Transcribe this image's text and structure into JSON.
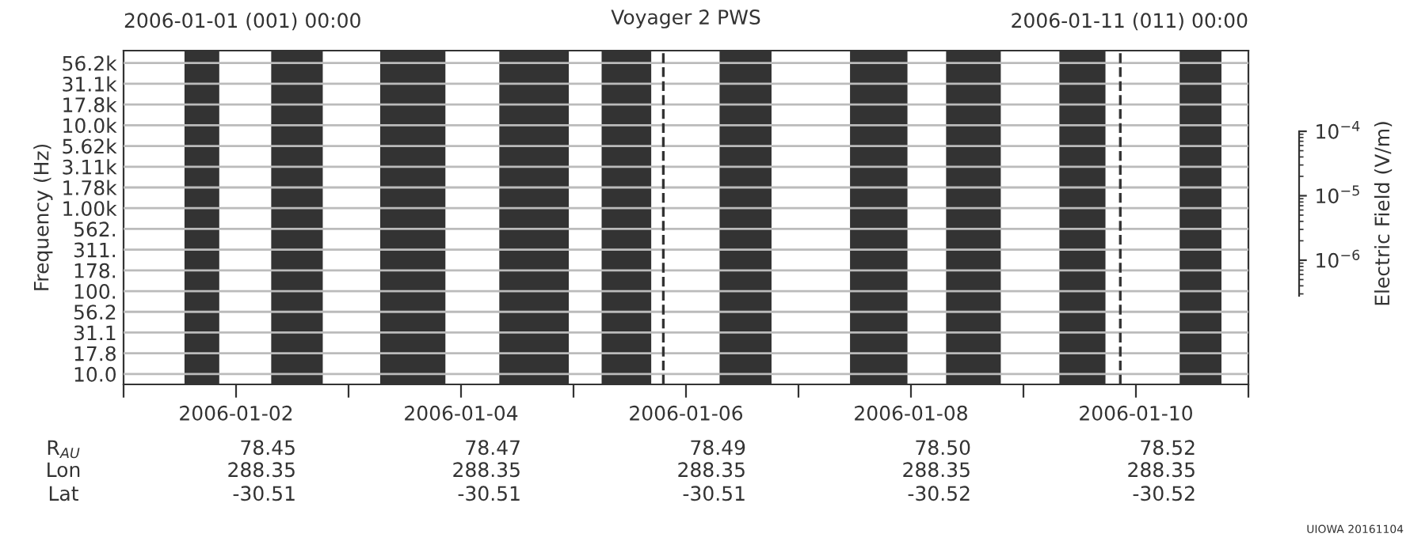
{
  "chart_data": {
    "type": "bar",
    "orientation": "horizontal",
    "title": "Voyager 2 PWS",
    "ylabel": "Frequency (Hz)",
    "y2label": "Electric Field (V/m)",
    "categories": [
      "56.2k",
      "31.1k",
      "17.8k",
      "10.0k",
      "5.62k",
      "3.11k",
      "1.78k",
      "1.00k",
      "562.",
      "311.",
      "178.",
      "100.",
      "56.2",
      "31.1",
      "17.8",
      "10.0"
    ],
    "bands": [
      {
        "axis": "x",
        "from": "2006-01-01T13:00",
        "to": "2006-01-01T20:25",
        "color": "#333333"
      },
      {
        "axis": "x",
        "from": "2006-01-02T07:30",
        "to": "2006-01-02T18:30",
        "color": "#333333"
      },
      {
        "axis": "x",
        "from": "2006-01-03T06:45",
        "to": "2006-01-03T20:40",
        "color": "#333333"
      },
      {
        "axis": "x",
        "from": "2006-01-04T08:10",
        "to": "2006-01-04T23:00",
        "color": "#333333"
      },
      {
        "axis": "x",
        "from": "2006-01-05T06:00",
        "to": "2006-01-05T16:35",
        "color": "#333333"
      },
      {
        "axis": "x",
        "from": "2006-01-06T07:10",
        "to": "2006-01-06T18:15",
        "color": "#333333"
      },
      {
        "axis": "x",
        "from": "2006-01-07T11:00",
        "to": "2006-01-07T23:15",
        "color": "#333333"
      },
      {
        "axis": "x",
        "from": "2006-01-08T07:30",
        "to": "2006-01-08T19:10",
        "color": "#333333"
      },
      {
        "axis": "x",
        "from": "2006-01-09T07:40",
        "to": "2006-01-09T17:30",
        "color": "#333333"
      },
      {
        "axis": "x",
        "from": "2006-01-10T09:20",
        "to": "2006-01-10T18:15",
        "color": "#333333"
      }
    ],
    "xlim": [
      "2006-01-01",
      "2006-01-11"
    ],
    "xticks": [
      {
        "value": "2006-01-01",
        "label": null
      },
      "2006-01-02",
      {
        "value": "2006-01-03",
        "label": null
      },
      "2006-01-04",
      {
        "value": "2006-01-05",
        "label": null
      },
      "2006-01-06",
      {
        "value": "2006-01-07",
        "label": null
      },
      "2006-01-08",
      {
        "value": "2006-01-09",
        "label": null
      },
      "2006-01-10",
      {
        "value": "2006-01-11",
        "label": null
      }
    ],
    "y2lim": [
      2.8e-07,
      0.0001
    ],
    "y2ticks": [
      {
        "value": 0.0001,
        "label": "10$^{−4}$"
      },
      {
        "value": 1e-05,
        "label": "10$^{−5}$"
      },
      {
        "value": 1e-06,
        "label": "10$^{−6}$"
      }
    ],
    "log": "y2",
    "grid": "y",
    "ref_lines": [
      {
        "axis": "x",
        "value": "2006-01-05T19:10",
        "line_style": "dashed",
        "color": "#333333"
      },
      {
        "axis": "x",
        "value": "2006-01-09T20:40",
        "line_style": "dashed",
        "color": "#333333"
      }
    ],
    "annotations": [
      "2006-01-01 (001) 00:00",
      "2006-01-11 (011) 00:00",
      "R$_{AU}$",
      "Lon",
      "Lat",
      "78.45",
      "288.35",
      "-30.51",
      "78.47",
      "288.35",
      "-30.51",
      "78.49",
      "288.35",
      "-30.51",
      "78.50",
      "288.35",
      "-30.52",
      "78.52",
      "288.35",
      "-30.52",
      "UIOWA 20161104"
    ]
  }
}
